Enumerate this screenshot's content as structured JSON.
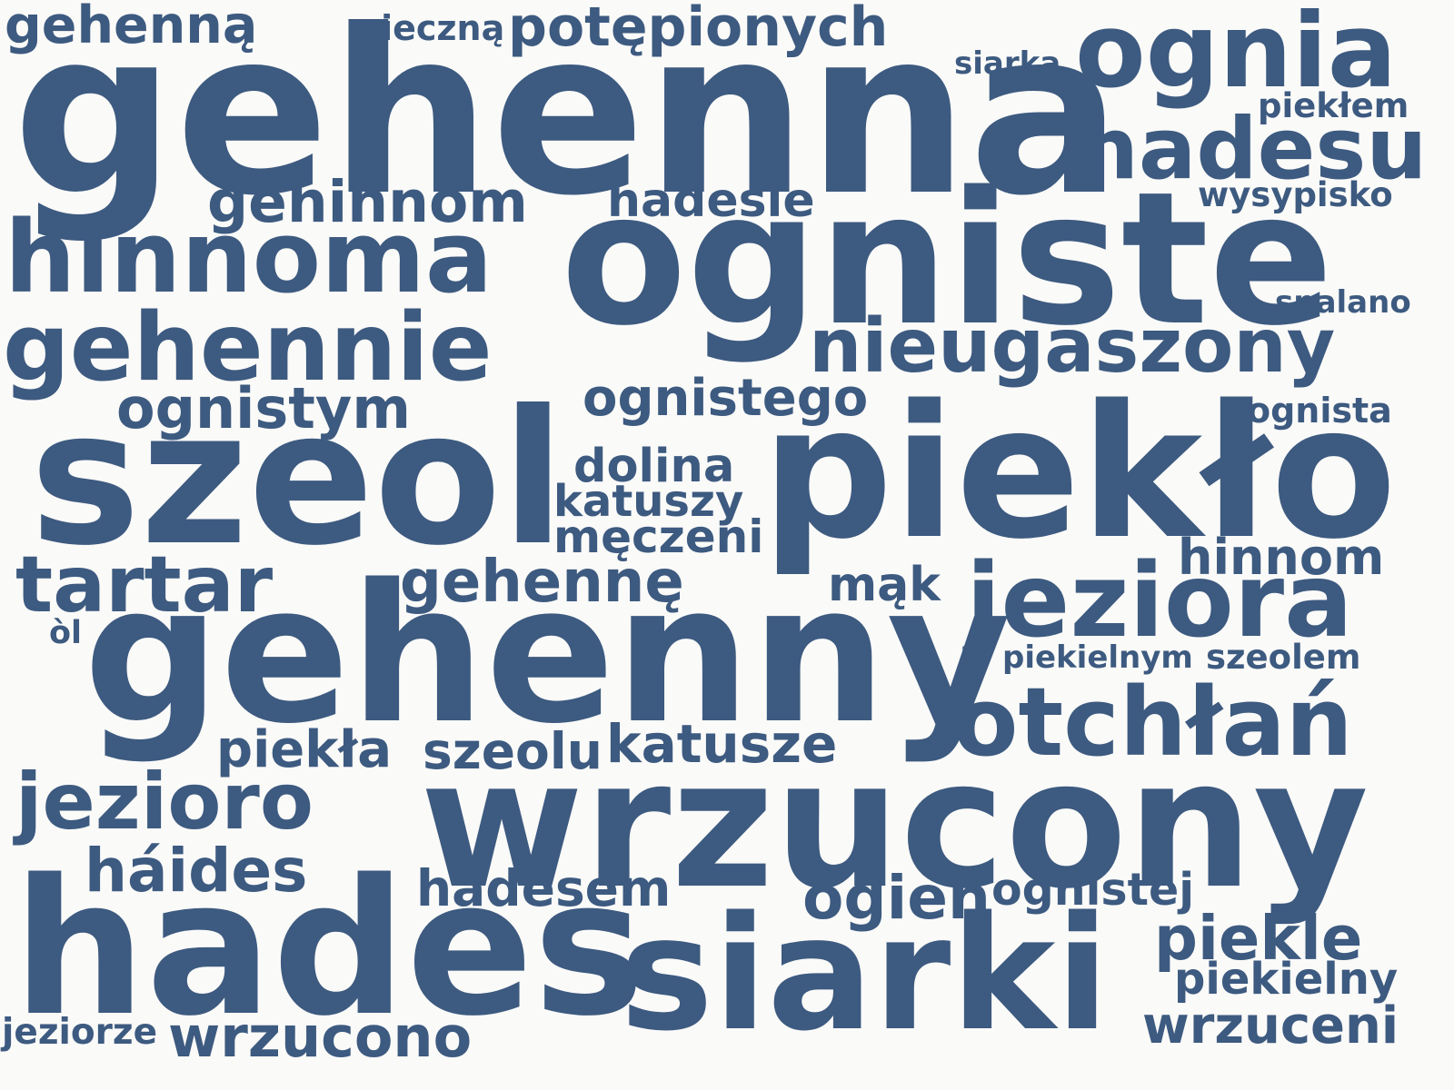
{
  "color": "#3d5a80",
  "background": "#fafaf8",
  "words": [
    "gehenna",
    "ogniste",
    "szeol",
    "piekło",
    "gehenny",
    "wrzucony",
    "hades",
    "siarki",
    "ognia",
    "hadesu",
    "hinnoma",
    "gehennie",
    "nieugaszony",
    "jeziora",
    "otchłań",
    "tartar",
    "jezioro",
    "gehinnom",
    "hadesie",
    "potępionych",
    "gehenną",
    "wieczną",
    "siarką",
    "piekłem",
    "wysypisko",
    "spalano",
    "ognistym",
    "ognistego",
    "ognista",
    "dolina",
    "katuszy",
    "męczeni",
    "gehennę",
    "mąk",
    "hinnom",
    "òl",
    "piekielnym",
    "szeolem",
    "piekła",
    "szeolu",
    "katusze",
    "háides",
    "hadesem",
    "ogień",
    "ognistej",
    "piekle",
    "piekielny",
    "jeziorze",
    "wrzucono",
    "wrzuceni"
  ]
}
